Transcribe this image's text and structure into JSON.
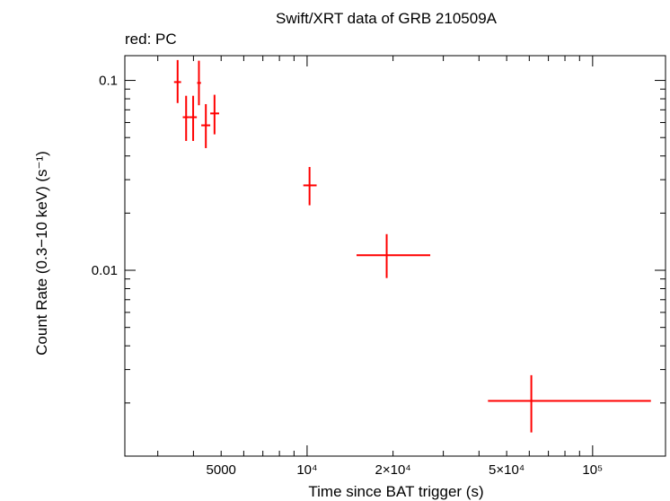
{
  "chart_data": {
    "type": "scatter",
    "title": "Swift/XRT data of GRB 210509A",
    "subtitle": "red: PC",
    "xlabel": "Time since BAT trigger (s)",
    "ylabel": "Count Rate (0.3−10 keV) (s⁻¹)",
    "xscale": "log",
    "yscale": "log",
    "xlim": [
      2300,
      180000
    ],
    "ylim": [
      0.00105,
      0.135
    ],
    "x_tick_labels": [
      {
        "value": 5000,
        "label": "5000"
      },
      {
        "value": 10000,
        "label": "10⁴"
      },
      {
        "value": 20000,
        "label": "2×10⁴"
      },
      {
        "value": 50000,
        "label": "5×10⁴"
      },
      {
        "value": 100000,
        "label": "10⁵"
      }
    ],
    "y_tick_labels": [
      {
        "value": 0.1,
        "label": "0.1"
      },
      {
        "value": 0.01,
        "label": "0.01"
      }
    ],
    "series": [
      {
        "name": "PC",
        "color": "#ff0000",
        "points": [
          {
            "x": 3520,
            "xlo": 3420,
            "xhi": 3620,
            "y": 0.098,
            "ylo": 0.076,
            "yhi": 0.128
          },
          {
            "x": 3770,
            "xlo": 3670,
            "xhi": 3870,
            "y": 0.064,
            "ylo": 0.048,
            "yhi": 0.083
          },
          {
            "x": 3990,
            "xlo": 3870,
            "xhi": 4110,
            "y": 0.064,
            "ylo": 0.048,
            "yhi": 0.083
          },
          {
            "x": 4180,
            "xlo": 4120,
            "xhi": 4250,
            "y": 0.097,
            "ylo": 0.074,
            "yhi": 0.127
          },
          {
            "x": 4420,
            "xlo": 4260,
            "xhi": 4580,
            "y": 0.058,
            "ylo": 0.044,
            "yhi": 0.075
          },
          {
            "x": 4740,
            "xlo": 4580,
            "xhi": 4920,
            "y": 0.067,
            "ylo": 0.052,
            "yhi": 0.084
          },
          {
            "x": 10200,
            "xlo": 9700,
            "xhi": 10800,
            "y": 0.028,
            "ylo": 0.022,
            "yhi": 0.035
          },
          {
            "x": 19000,
            "xlo": 14900,
            "xhi": 27000,
            "y": 0.012,
            "ylo": 0.0091,
            "yhi": 0.0155
          },
          {
            "x": 61000,
            "xlo": 43000,
            "xhi": 160000,
            "y": 0.00205,
            "ylo": 0.0014,
            "yhi": 0.0028
          }
        ]
      }
    ]
  }
}
